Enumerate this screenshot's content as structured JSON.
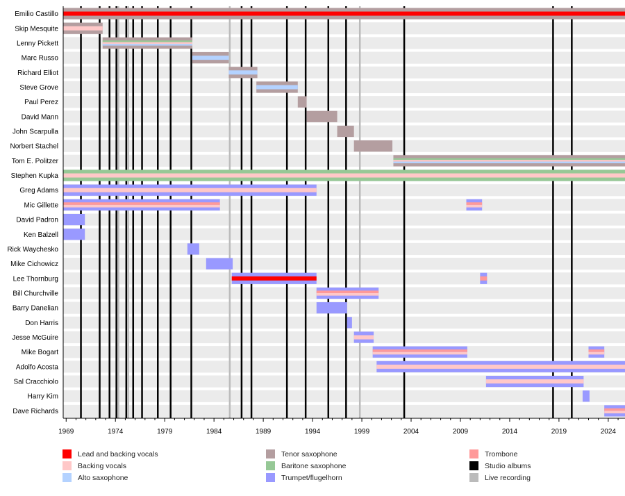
{
  "chart_data": {
    "type": "timeline",
    "xlim": [
      1968.7,
      2025.7
    ],
    "xticks": [
      1969,
      1974,
      1979,
      1984,
      1989,
      1994,
      1999,
      2004,
      2009,
      2014,
      2019,
      2024
    ],
    "colors": {
      "lead": "#ff0000",
      "backing": "#ffc8c8",
      "alto": "#b4d2ff",
      "tenor": "#b49ea0",
      "baritone": "#96c896",
      "trumpet": "#9999ff",
      "trombone": "#ff9999",
      "studio": "#000000",
      "live": "#bbbbbb"
    },
    "legend": [
      {
        "key": "lead",
        "label": "Lead and backing vocals"
      },
      {
        "key": "backing",
        "label": "Backing vocals"
      },
      {
        "key": "alto",
        "label": "Alto saxophone"
      },
      {
        "key": "tenor",
        "label": "Tenor saxophone"
      },
      {
        "key": "baritone",
        "label": "Baritone saxophone"
      },
      {
        "key": "trumpet",
        "label": "Trumpet/flugelhorn"
      },
      {
        "key": "trombone",
        "label": "Trombone"
      },
      {
        "key": "studio",
        "label": "Studio albums"
      },
      {
        "key": "live",
        "label": "Live recording"
      }
    ],
    "studio_albums": [
      1970.5,
      1972.4,
      1973.4,
      1974.1,
      1975.1,
      1975.8,
      1976.7,
      1978.3,
      1979.6,
      1981.7,
      1986.8,
      1987.8,
      1991.4,
      1993.3,
      1995.6,
      1997.4,
      2003.3,
      2018.4,
      2020.3
    ],
    "live_recordings": [
      1974.3,
      1975.3,
      1985.6,
      1998.8
    ],
    "members": [
      {
        "name": "Emilio Castillo",
        "periods": [
          {
            "start": 1968.7,
            "end": 2025.7,
            "roles": [
              "tenor",
              "lead"
            ]
          }
        ]
      },
      {
        "name": "Skip Mesquite",
        "periods": [
          {
            "start": 1968.7,
            "end": 1972.7,
            "roles": [
              "tenor",
              "backing"
            ]
          }
        ]
      },
      {
        "name": "Lenny Pickett",
        "periods": [
          {
            "start": 1972.7,
            "end": 1981.8,
            "roles": [
              "tenor",
              "baritone",
              "backing",
              "alto"
            ]
          }
        ]
      },
      {
        "name": "Marc Russo",
        "periods": [
          {
            "start": 1981.8,
            "end": 1985.5,
            "roles": [
              "tenor",
              "alto"
            ]
          }
        ]
      },
      {
        "name": "Richard Elliot",
        "periods": [
          {
            "start": 1985.5,
            "end": 1988.4,
            "roles": [
              "tenor",
              "alto"
            ]
          }
        ]
      },
      {
        "name": "Steve Grove",
        "periods": [
          {
            "start": 1988.3,
            "end": 1992.5,
            "roles": [
              "tenor",
              "alto"
            ]
          }
        ]
      },
      {
        "name": "Paul Perez",
        "periods": [
          {
            "start": 1992.5,
            "end": 1993.4,
            "roles": [
              "tenor"
            ]
          }
        ]
      },
      {
        "name": "David Mann",
        "periods": [
          {
            "start": 1993.4,
            "end": 1996.5,
            "roles": [
              "tenor"
            ]
          }
        ]
      },
      {
        "name": "John Scarpulla",
        "periods": [
          {
            "start": 1996.5,
            "end": 1998.2,
            "roles": [
              "tenor"
            ]
          }
        ]
      },
      {
        "name": "Norbert Stachel",
        "periods": [
          {
            "start": 1998.2,
            "end": 2002.1,
            "roles": [
              "tenor"
            ]
          }
        ]
      },
      {
        "name": "Tom E. Politzer",
        "periods": [
          {
            "start": 2002.2,
            "end": 2025.7,
            "roles": [
              "tenor",
              "baritone",
              "backing",
              "alto"
            ]
          }
        ]
      },
      {
        "name": "Stephen Kupka",
        "periods": [
          {
            "start": 1968.7,
            "end": 2025.7,
            "roles": [
              "baritone",
              "backing"
            ]
          }
        ]
      },
      {
        "name": "Greg Adams",
        "periods": [
          {
            "start": 1968.7,
            "end": 1994.4,
            "roles": [
              "trumpet",
              "backing"
            ]
          }
        ]
      },
      {
        "name": "Mic Gillette",
        "periods": [
          {
            "start": 1968.7,
            "end": 1984.6,
            "roles": [
              "trumpet",
              "trombone",
              "backing"
            ]
          },
          {
            "start": 2009.6,
            "end": 2011.2,
            "roles": [
              "trumpet",
              "trombone",
              "backing"
            ]
          }
        ]
      },
      {
        "name": "David Padron",
        "periods": [
          {
            "start": 1968.7,
            "end": 1970.9,
            "roles": [
              "trumpet"
            ]
          }
        ]
      },
      {
        "name": "Ken Balzell",
        "periods": [
          {
            "start": 1968.7,
            "end": 1970.9,
            "roles": [
              "trumpet"
            ]
          }
        ]
      },
      {
        "name": "Rick Waychesko",
        "periods": [
          {
            "start": 1981.3,
            "end": 1982.5,
            "roles": [
              "trumpet"
            ]
          }
        ]
      },
      {
        "name": "Mike Cichowicz",
        "periods": [
          {
            "start": 1983.2,
            "end": 1985.9,
            "roles": [
              "trumpet"
            ]
          }
        ]
      },
      {
        "name": "Lee Thornburg",
        "periods": [
          {
            "start": 1985.8,
            "end": 1994.4,
            "roles": [
              "trumpet",
              "lead"
            ]
          },
          {
            "start": 2011.0,
            "end": 2011.7,
            "roles": [
              "trumpet",
              "trombone"
            ]
          }
        ]
      },
      {
        "name": "Bill Churchville",
        "periods": [
          {
            "start": 1994.4,
            "end": 2000.7,
            "roles": [
              "trumpet",
              "trombone",
              "backing"
            ]
          }
        ]
      },
      {
        "name": "Barry Danelian",
        "periods": [
          {
            "start": 1994.4,
            "end": 1997.5,
            "roles": [
              "trumpet"
            ]
          }
        ]
      },
      {
        "name": "Don Harris",
        "periods": [
          {
            "start": 1997.5,
            "end": 1998.0,
            "roles": [
              "trumpet"
            ]
          }
        ]
      },
      {
        "name": "Jesse McGuire",
        "periods": [
          {
            "start": 1998.2,
            "end": 2000.2,
            "roles": [
              "trumpet",
              "backing"
            ]
          }
        ]
      },
      {
        "name": "Mike Bogart",
        "periods": [
          {
            "start": 2000.1,
            "end": 2009.7,
            "roles": [
              "trumpet",
              "trombone",
              "backing"
            ]
          },
          {
            "start": 2022.0,
            "end": 2023.6,
            "roles": [
              "trumpet",
              "trombone",
              "backing"
            ]
          }
        ]
      },
      {
        "name": "Adolfo Acosta",
        "periods": [
          {
            "start": 2000.5,
            "end": 2025.7,
            "roles": [
              "trumpet",
              "backing"
            ]
          }
        ]
      },
      {
        "name": "Sal Cracchiolo",
        "periods": [
          {
            "start": 2011.6,
            "end": 2021.5,
            "roles": [
              "trumpet",
              "backing"
            ]
          }
        ]
      },
      {
        "name": "Harry Kim",
        "periods": [
          {
            "start": 2021.4,
            "end": 2022.1,
            "roles": [
              "trumpet"
            ]
          }
        ]
      },
      {
        "name": "Dave Richards",
        "periods": [
          {
            "start": 2023.6,
            "end": 2025.7,
            "roles": [
              "trumpet",
              "trombone",
              "backing"
            ]
          }
        ]
      }
    ]
  }
}
